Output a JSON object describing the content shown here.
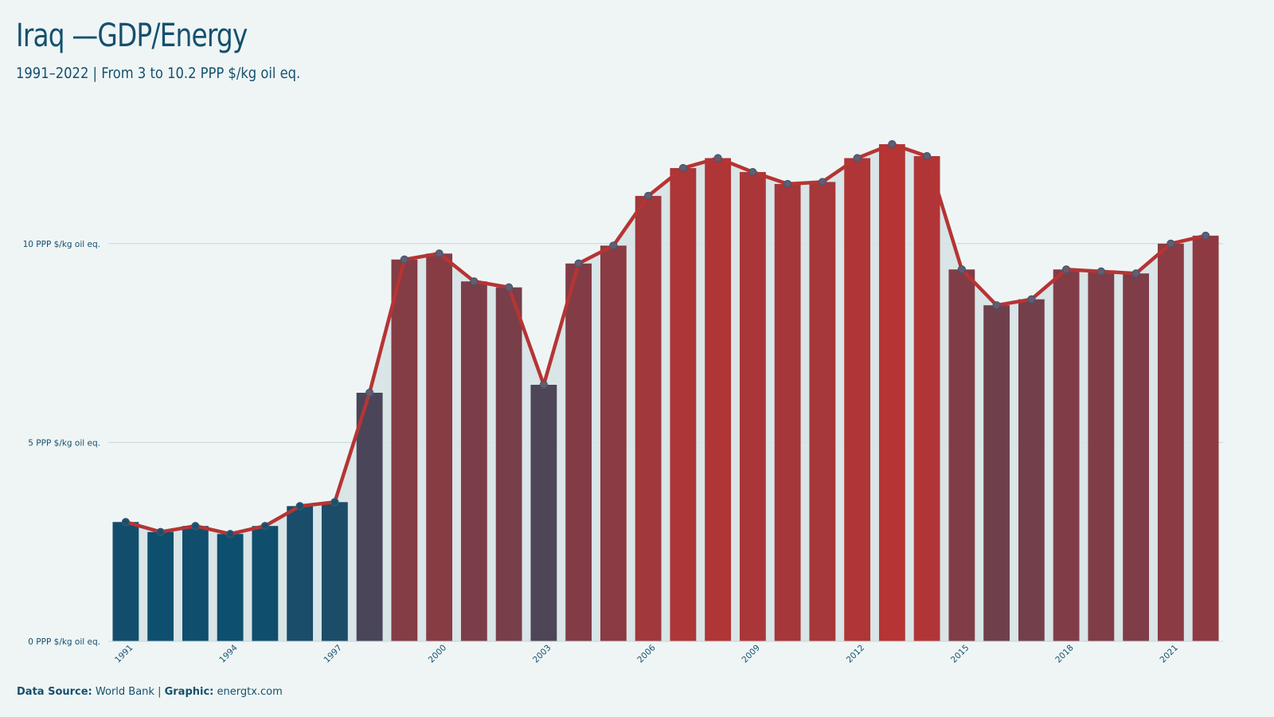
{
  "header": {
    "title": "Iraq —GDP/Energy",
    "subtitle": "1991–2022 | From 3 to 10.2 PPP $/kg oil eq."
  },
  "footer": {
    "source_label": "Data Source:",
    "source_value": " World Bank | ",
    "graphic_label": "Graphic:",
    "graphic_value": " energtx.com"
  },
  "colors": {
    "background": "#eff5f5",
    "low": "#0d4f6e",
    "high": "#b63434",
    "line": "#b63434",
    "area": "#d6e3e5",
    "text": "#14506f"
  },
  "chart_data": {
    "type": "bar",
    "overlay": "line",
    "title": "Iraq —GDP/Energy",
    "subtitle": "1991–2022 | From 3 to 10.2 PPP $/kg oil eq.",
    "xlabel": "",
    "ylabel": "",
    "ylim": [
      0,
      12.6
    ],
    "yticks": [
      0,
      5,
      10
    ],
    "ytick_labels": [
      "0 PPP $/kg oil eq.",
      "5 PPP $/kg oil eq.",
      "10 PPP $/kg oil eq."
    ],
    "xtick_labels": [
      "1991",
      "1994",
      "1997",
      "2000",
      "2003",
      "2006",
      "2009",
      "2012",
      "2015",
      "2018",
      "2021"
    ],
    "grid": true,
    "categories": [
      "1991",
      "1992",
      "1993",
      "1994",
      "1995",
      "1996",
      "1997",
      "1998",
      "1999",
      "2000",
      "2001",
      "2002",
      "2003",
      "2004",
      "2005",
      "2006",
      "2007",
      "2008",
      "2009",
      "2010",
      "2011",
      "2012",
      "2013",
      "2014",
      "2015",
      "2016",
      "2017",
      "2018",
      "2019",
      "2020",
      "2021",
      "2022"
    ],
    "values": [
      3.0,
      2.75,
      2.9,
      2.7,
      2.9,
      3.4,
      3.5,
      6.25,
      9.6,
      9.75,
      9.05,
      8.9,
      6.45,
      9.5,
      9.95,
      11.2,
      11.9,
      12.15,
      11.8,
      11.5,
      11.55,
      12.15,
      12.5,
      12.2,
      9.35,
      8.45,
      8.6,
      9.35,
      9.3,
      9.25,
      10.0,
      10.2
    ]
  }
}
